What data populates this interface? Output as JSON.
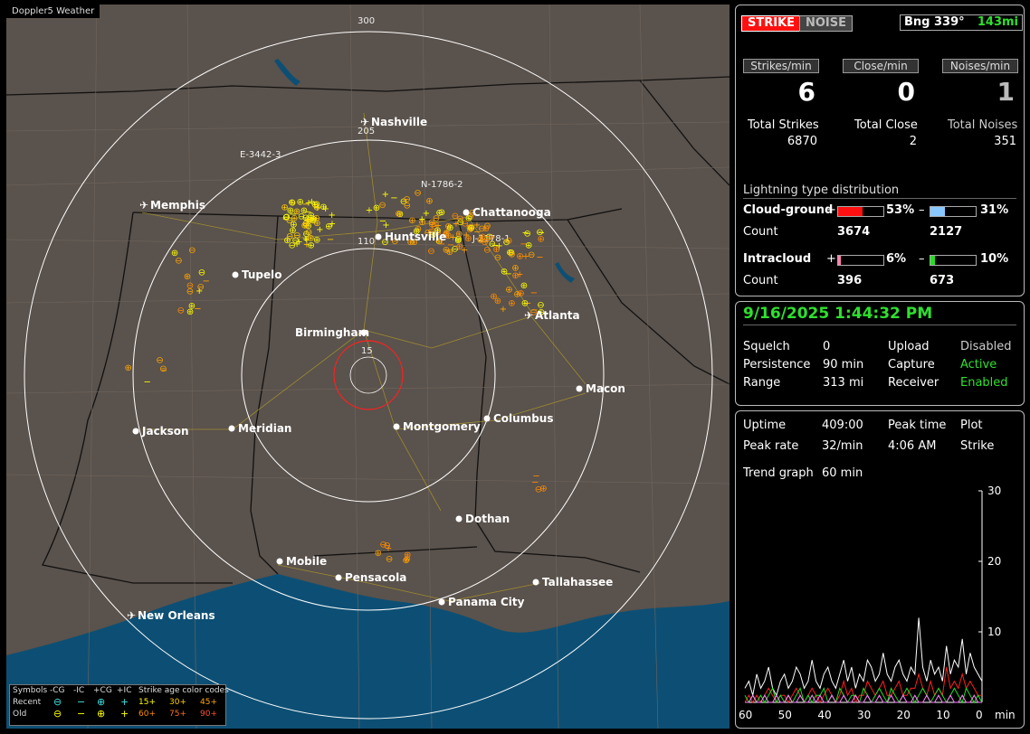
{
  "app": {
    "title": "Doppler5 Weather"
  },
  "map": {
    "range_labels": [
      "300",
      "205",
      "110",
      "15"
    ],
    "strike_tags": [
      "E-3442-3",
      "N-1786-2",
      "J-2178-1"
    ],
    "cities": [
      {
        "name": "Nashville",
        "icon": "airport-icon"
      },
      {
        "name": "Memphis",
        "icon": "airport-icon"
      },
      {
        "name": "Chattanooga",
        "icon": "city-dot-icon"
      },
      {
        "name": "Huntsville",
        "icon": "city-dot-icon"
      },
      {
        "name": "Tupelo",
        "icon": "city-dot-icon"
      },
      {
        "name": "Atlanta",
        "icon": "airport-icon"
      },
      {
        "name": "Birmingham",
        "icon": "city-dot-icon"
      },
      {
        "name": "Macon",
        "icon": "city-dot-icon"
      },
      {
        "name": "Jackson",
        "icon": "city-dot-icon"
      },
      {
        "name": "Meridian",
        "icon": "city-dot-icon"
      },
      {
        "name": "Montgomery",
        "icon": "city-dot-icon"
      },
      {
        "name": "Columbus",
        "icon": "city-dot-icon"
      },
      {
        "name": "Dothan",
        "icon": "city-dot-icon"
      },
      {
        "name": "Mobile",
        "icon": "city-dot-icon"
      },
      {
        "name": "Pensacola",
        "icon": "city-dot-icon"
      },
      {
        "name": "Tallahassee",
        "icon": "city-dot-icon"
      },
      {
        "name": "Panama City",
        "icon": "city-dot-icon"
      },
      {
        "name": "New Orleans",
        "icon": "airport-icon"
      }
    ],
    "legend": {
      "symbols": "Symbols",
      "neg_cg": "-CG",
      "neg_ic": "-IC",
      "pos_cg": "+CG",
      "pos_ic": "+IC",
      "age_title": "Strike age color codes",
      "recent": "Recent",
      "old": "Old",
      "ages_recent": [
        "15+",
        "30+",
        "45+"
      ],
      "ages_old": [
        "60+",
        "75+",
        "90+"
      ]
    },
    "colors": {
      "land": "#5a524c",
      "water": "#0d4f74",
      "recent": "#ffff00",
      "mid": "#ffa500",
      "old": "#e07020",
      "ring": "#ffffff",
      "close_ring": "#ff2020"
    }
  },
  "status": {
    "strike_btn": "STRIKE",
    "noise_btn": "NOISE",
    "bearing_label": "Bng 339°",
    "bearing_dist": "143mi",
    "rates": [
      {
        "label": "Strikes/min",
        "value": "6"
      },
      {
        "label": "Close/min",
        "value": "0"
      },
      {
        "label": "Noises/min",
        "value": "1"
      }
    ],
    "totals": [
      {
        "label": "Total Strikes",
        "value": "6870"
      },
      {
        "label": "Total Close",
        "value": "2"
      },
      {
        "label": "Total Noises",
        "value": "351"
      }
    ],
    "dist_title": "Lightning type distribution",
    "cloud_ground": {
      "label": "Cloud-ground",
      "plus_sign": "+",
      "minus_sign": "–",
      "plus_pct": "53%",
      "minus_pct": "31%",
      "plus_frac": 0.53,
      "minus_frac": 0.31,
      "count_label": "Count",
      "plus_count": "3674",
      "minus_count": "2127"
    },
    "intracloud": {
      "label": "Intracloud",
      "plus_sign": "+",
      "minus_sign": "–",
      "plus_pct": "6%",
      "minus_pct": "10%",
      "plus_frac": 0.06,
      "minus_frac": 0.1,
      "count_label": "Count",
      "plus_count": "396",
      "minus_count": "673"
    },
    "bar_colors": {
      "cg_plus": "#ff1010",
      "cg_minus": "#88c8ff",
      "ic_plus": "#ff80b0",
      "ic_minus": "#20e020"
    }
  },
  "settings": {
    "datetime": "9/16/2025 1:44:32 PM",
    "rows": [
      {
        "k1": "Squelch",
        "v1": "0",
        "k2": "Upload",
        "v2": "Disabled"
      },
      {
        "k1": "Persistence",
        "v1": "90 min",
        "k2": "Capture",
        "v2": "Active"
      },
      {
        "k1": "Range",
        "v1": "313 mi",
        "k2": "Receiver",
        "v2": "Enabled"
      }
    ]
  },
  "trend": {
    "uptime_label": "Uptime",
    "uptime": "409:00",
    "peak_time_label": "Peak time",
    "peak_time": "4:06 AM",
    "plot_label": "Plot",
    "plot_value": "Strike",
    "peak_rate_label": "Peak rate",
    "peak_rate": "32/min",
    "trend_label": "Trend graph",
    "trend_value": "60 min",
    "chart_data": {
      "type": "line",
      "xlabel": "min",
      "x_ticks": [
        "60",
        "50",
        "40",
        "30",
        "20",
        "10",
        "0"
      ],
      "y_ticks": [
        "30",
        "20",
        "10"
      ],
      "ylim": [
        0,
        30
      ],
      "xlim": [
        60,
        0
      ],
      "series": [
        {
          "color": "#ffffff",
          "values": [
            2,
            3,
            1,
            4,
            2,
            3,
            5,
            2,
            1,
            3,
            4,
            2,
            3,
            5,
            4,
            2,
            3,
            6,
            3,
            2,
            4,
            5,
            3,
            2,
            4,
            6,
            3,
            5,
            2,
            4,
            3,
            6,
            5,
            3,
            4,
            7,
            4,
            3,
            5,
            6,
            4,
            3,
            5,
            4,
            12,
            5,
            3,
            6,
            4,
            5,
            3,
            8,
            4,
            6,
            5,
            9,
            4,
            7,
            5,
            4,
            3
          ]
        },
        {
          "color": "#ff2020",
          "values": [
            0,
            1,
            0,
            1,
            0,
            1,
            2,
            1,
            0,
            1,
            1,
            0,
            1,
            2,
            1,
            0,
            1,
            2,
            1,
            0,
            1,
            2,
            1,
            0,
            1,
            3,
            1,
            2,
            0,
            1,
            1,
            3,
            2,
            1,
            2,
            3,
            1,
            1,
            2,
            3,
            1,
            1,
            2,
            2,
            4,
            2,
            1,
            3,
            1,
            2,
            1,
            5,
            2,
            3,
            2,
            4,
            2,
            3,
            2,
            1,
            1
          ]
        },
        {
          "color": "#20e020",
          "values": [
            1,
            0,
            1,
            0,
            1,
            0,
            1,
            2,
            0,
            1,
            0,
            1,
            0,
            1,
            2,
            0,
            1,
            0,
            1,
            1,
            2,
            0,
            1,
            0,
            2,
            1,
            0,
            1,
            1,
            0,
            2,
            1,
            0,
            1,
            2,
            1,
            0,
            2,
            1,
            0,
            1,
            2,
            1,
            0,
            1,
            2,
            1,
            0,
            1,
            2,
            1,
            0,
            1,
            2,
            1,
            0,
            2,
            1,
            0,
            1,
            0
          ]
        },
        {
          "color": "#ff80ff",
          "values": [
            0,
            0,
            1,
            0,
            0,
            1,
            0,
            0,
            1,
            0,
            0,
            1,
            0,
            0,
            1,
            0,
            0,
            1,
            0,
            1,
            0,
            0,
            1,
            0,
            0,
            1,
            0,
            0,
            1,
            0,
            0,
            1,
            0,
            0,
            1,
            0,
            0,
            1,
            0,
            0,
            1,
            0,
            0,
            1,
            0,
            0,
            1,
            0,
            0,
            1,
            0,
            0,
            1,
            0,
            0,
            1,
            0,
            0,
            1,
            0,
            0
          ]
        }
      ]
    }
  }
}
